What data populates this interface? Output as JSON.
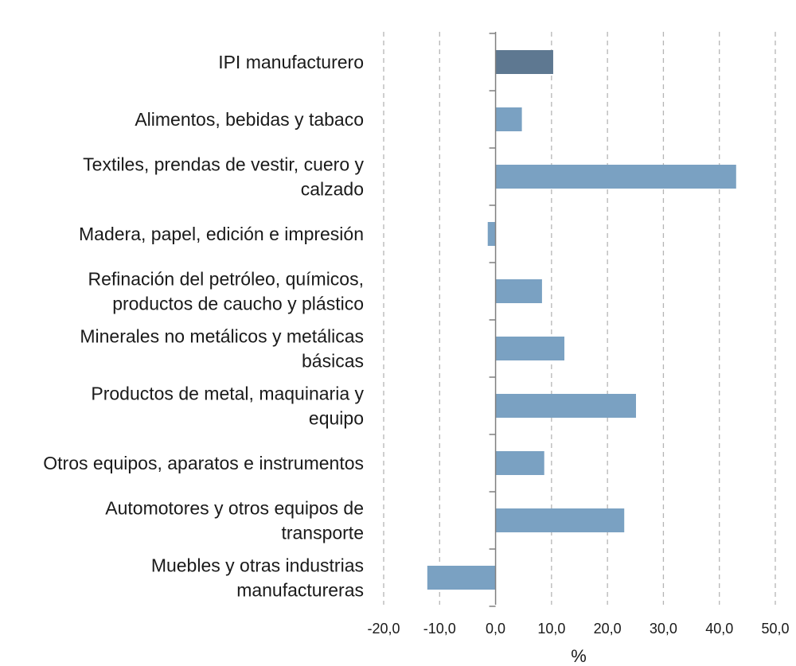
{
  "chart_data": {
    "type": "bar",
    "orientation": "horizontal",
    "categories": [
      "IPI manufacturero",
      "Alimentos, bebidas y tabaco",
      "Textiles, prendas de vestir, cuero y calzado",
      "Madera, papel, edición e impresión",
      "Refinación del petróleo, químicos, productos de caucho y plástico",
      "Minerales no metálicos y metálicas básicas",
      "Productos de metal, maquinaria y equipo",
      "Otros equipos, aparatos e instrumentos",
      "Automotores y otros equipos de transporte",
      "Muebles y otras industrias manufactureras"
    ],
    "category_lines": [
      [
        "IPI manufacturero"
      ],
      [
        "Alimentos, bebidas y tabaco"
      ],
      [
        "Textiles, prendas de vestir, cuero y",
        "calzado"
      ],
      [
        "Madera, papel, edición e impresión"
      ],
      [
        "Refinación del petróleo, químicos,",
        "productos de caucho y plástico"
      ],
      [
        "Minerales no metálicos y metálicas",
        "básicas"
      ],
      [
        "Productos de metal, maquinaria y",
        "equipo"
      ],
      [
        "Otros equipos, aparatos e instrumentos"
      ],
      [
        "Automotores y otros equipos de",
        "transporte"
      ],
      [
        "Muebles y otras industrias",
        "manufactureras"
      ]
    ],
    "values": [
      10.3,
      4.7,
      43.0,
      -1.4,
      8.3,
      12.3,
      25.1,
      8.7,
      23.0,
      -12.2
    ],
    "colors": [
      "#5e7891",
      "#7aa1c2",
      "#7aa1c2",
      "#7aa1c2",
      "#7aa1c2",
      "#7aa1c2",
      "#7aa1c2",
      "#7aa1c2",
      "#7aa1c2",
      "#7aa1c2"
    ],
    "xlim": [
      -20,
      50
    ],
    "xticks": [
      -20,
      -10,
      0,
      10,
      20,
      30,
      40,
      50
    ],
    "xtick_labels": [
      "-20,0",
      "-10,0",
      "0,0",
      "10,0",
      "20,0",
      "30,0",
      "40,0",
      "50,0"
    ],
    "xlabel": "%",
    "ylabel": "",
    "title": "",
    "grid": true
  }
}
